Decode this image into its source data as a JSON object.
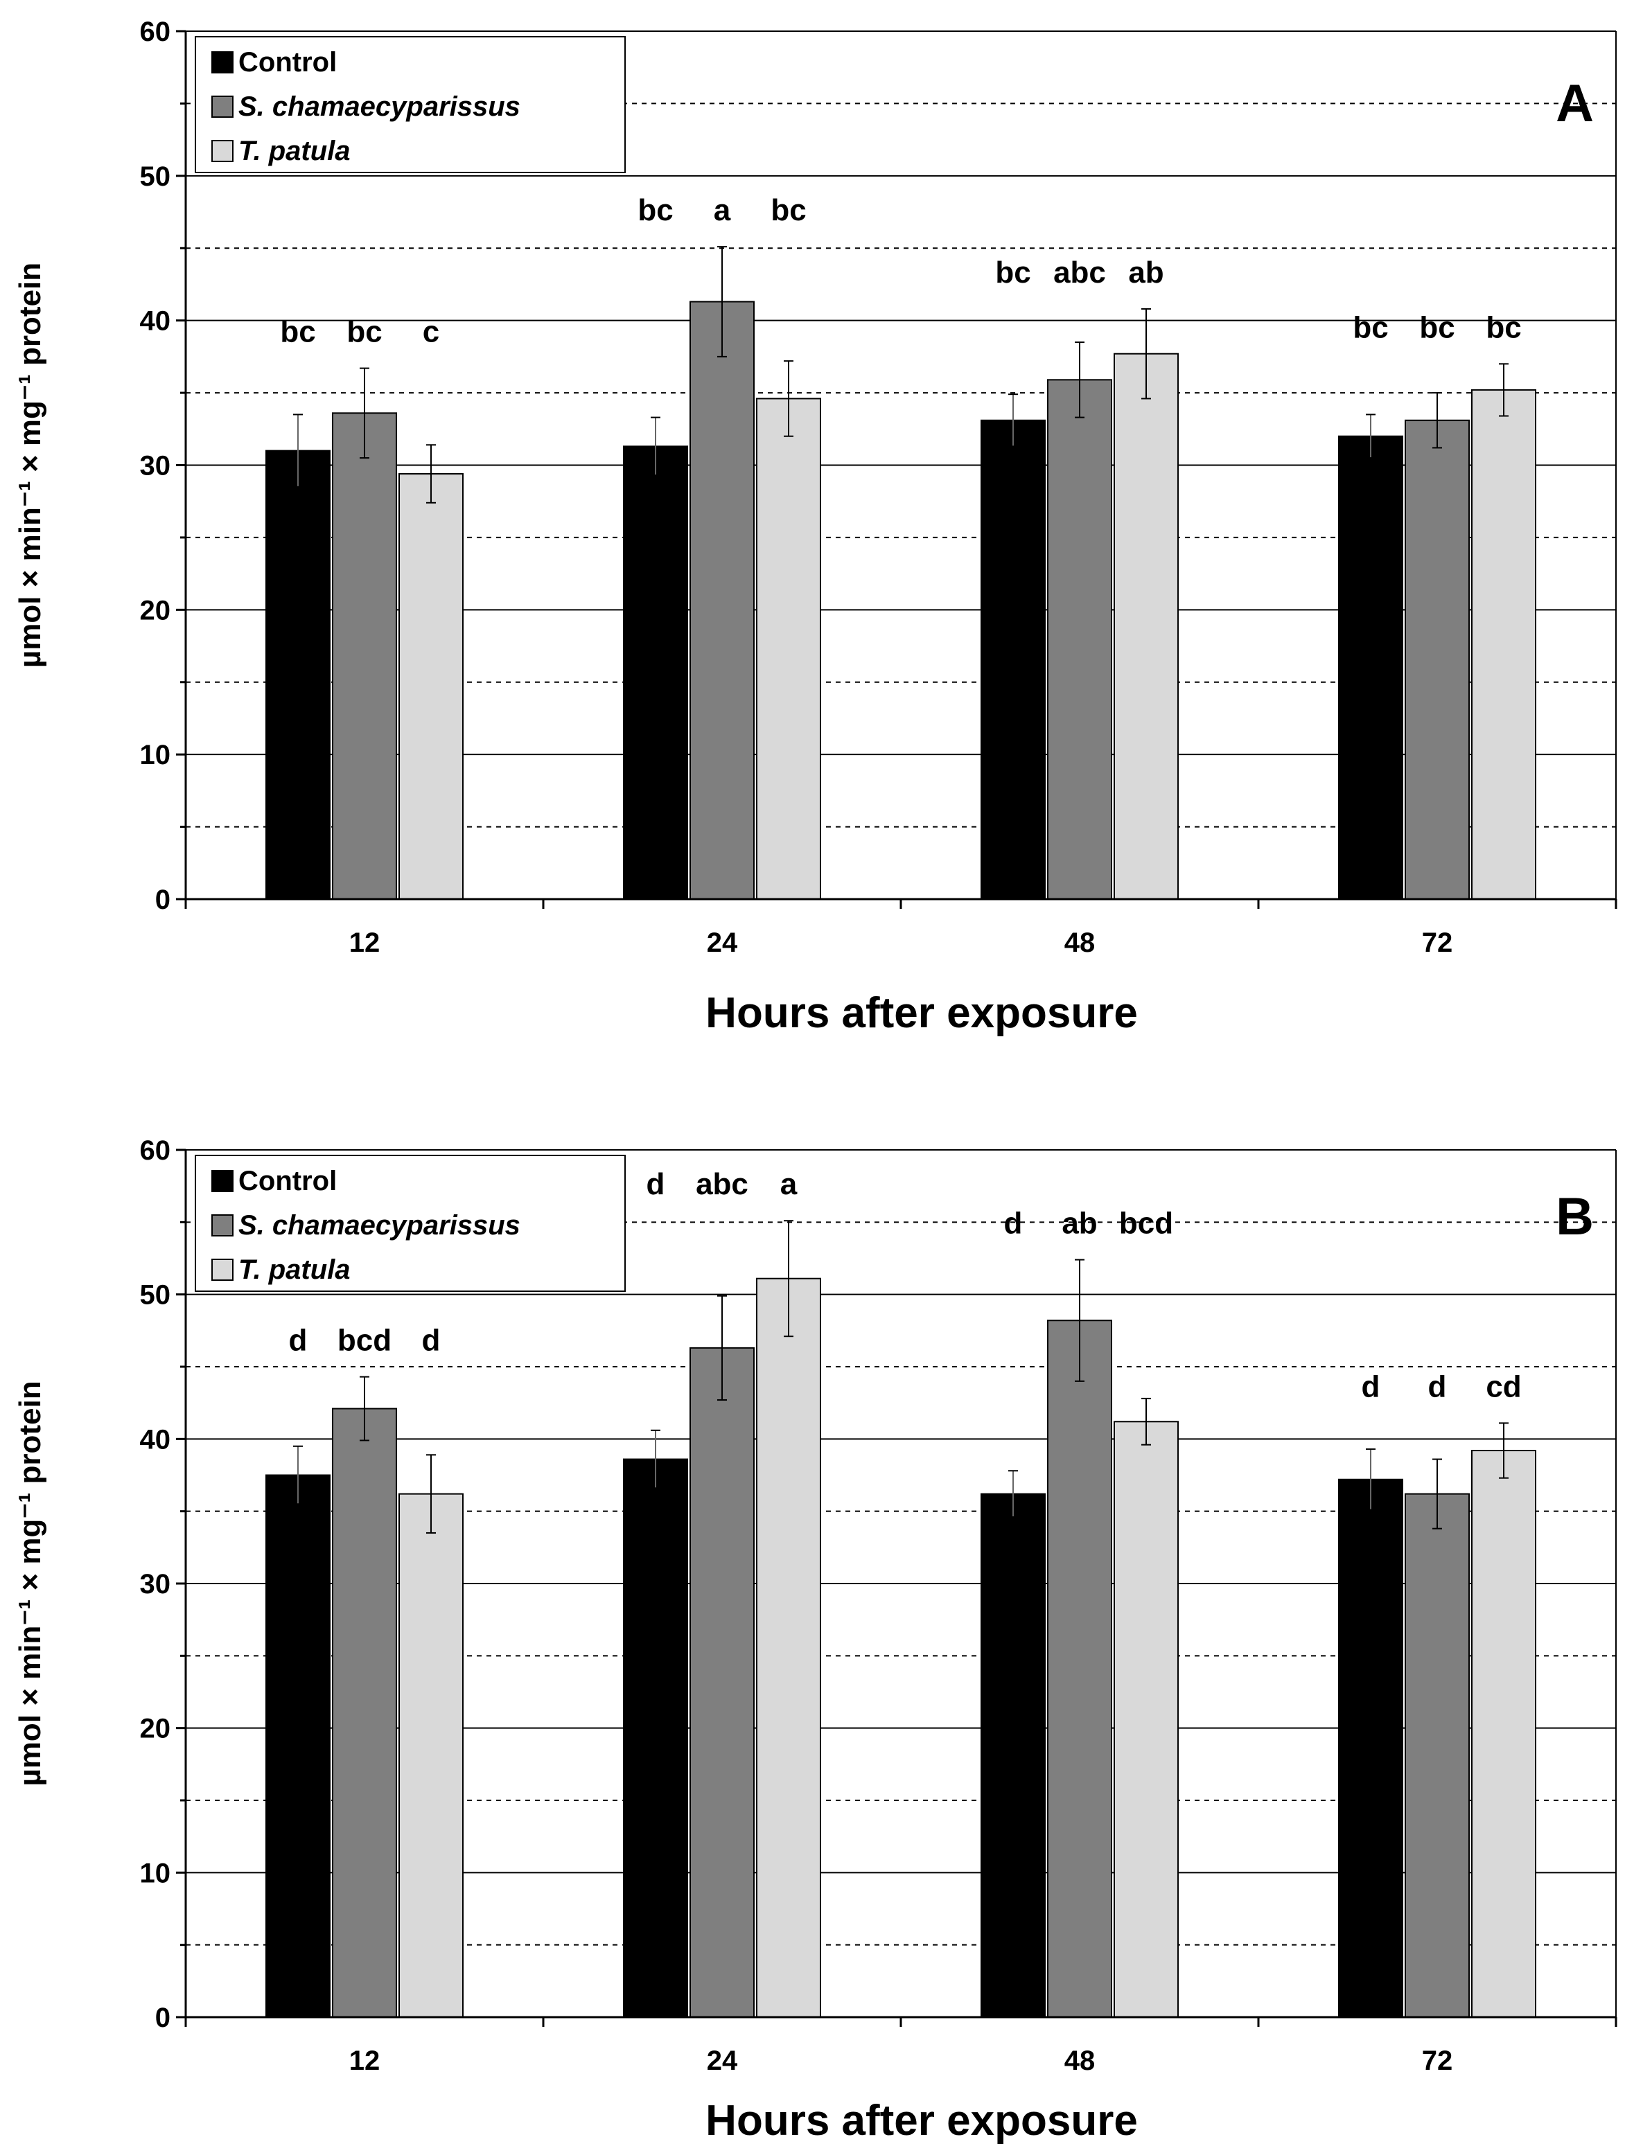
{
  "colors": {
    "Control": "#000000",
    "S. chamaecyparissus": "#7f7f7f",
    "T. patula": "#d9d9d9"
  },
  "chart_data": [
    {
      "type": "bar",
      "panel_label": "A",
      "categories": [
        "12",
        "24",
        "48",
        "72"
      ],
      "xlabel": "Hours after exposure",
      "ylabel": "µmol × min⁻¹ × mg⁻¹ protein",
      "ylim": [
        0,
        60
      ],
      "yticks": [
        "0",
        "10",
        "20",
        "30",
        "40",
        "50",
        "60"
      ],
      "grid": true,
      "legend_position": "top-left",
      "series": [
        {
          "name": "Control",
          "italic": false,
          "values": [
            31.0,
            31.3,
            33.1,
            32.0
          ],
          "errors": [
            2.5,
            2.0,
            1.8,
            1.5
          ],
          "letters": [
            "bc",
            "bc",
            "bc",
            "bc"
          ]
        },
        {
          "name": "S. chamaecyparissus",
          "italic": true,
          "values": [
            33.6,
            41.3,
            35.9,
            33.1
          ],
          "errors": [
            3.1,
            3.8,
            2.6,
            1.9
          ],
          "letters": [
            "bc",
            "a",
            "abc",
            "bc"
          ]
        },
        {
          "name": "T. patula",
          "italic": true,
          "values": [
            29.4,
            34.6,
            37.7,
            35.2
          ],
          "errors": [
            2.0,
            2.6,
            3.1,
            1.8
          ],
          "letters": [
            "c",
            "bc",
            "ab",
            "bc"
          ]
        }
      ]
    },
    {
      "type": "bar",
      "panel_label": "B",
      "categories": [
        "12",
        "24",
        "48",
        "72"
      ],
      "xlabel": "Hours after exposure",
      "ylabel": "µmol × min⁻¹ × mg⁻¹ protein",
      "ylim": [
        0,
        60
      ],
      "yticks": [
        "0",
        "10",
        "20",
        "30",
        "40",
        "50",
        "60"
      ],
      "grid": true,
      "legend_position": "top-left",
      "series": [
        {
          "name": "Control",
          "italic": false,
          "values": [
            37.5,
            38.6,
            36.2,
            37.2
          ],
          "errors": [
            2.0,
            2.0,
            1.6,
            2.1
          ],
          "letters": [
            "d",
            "d",
            "d",
            "d"
          ]
        },
        {
          "name": "S. chamaecyparissus",
          "italic": true,
          "values": [
            42.1,
            46.3,
            48.2,
            36.2
          ],
          "errors": [
            2.2,
            3.6,
            4.2,
            2.4
          ],
          "letters": [
            "bcd",
            "abc",
            "ab",
            "d"
          ]
        },
        {
          "name": "T. patula",
          "italic": true,
          "values": [
            36.2,
            51.1,
            41.2,
            39.2
          ],
          "errors": [
            2.7,
            4.0,
            1.6,
            1.9
          ],
          "letters": [
            "d",
            "a",
            "bcd",
            "cd"
          ]
        }
      ]
    }
  ]
}
